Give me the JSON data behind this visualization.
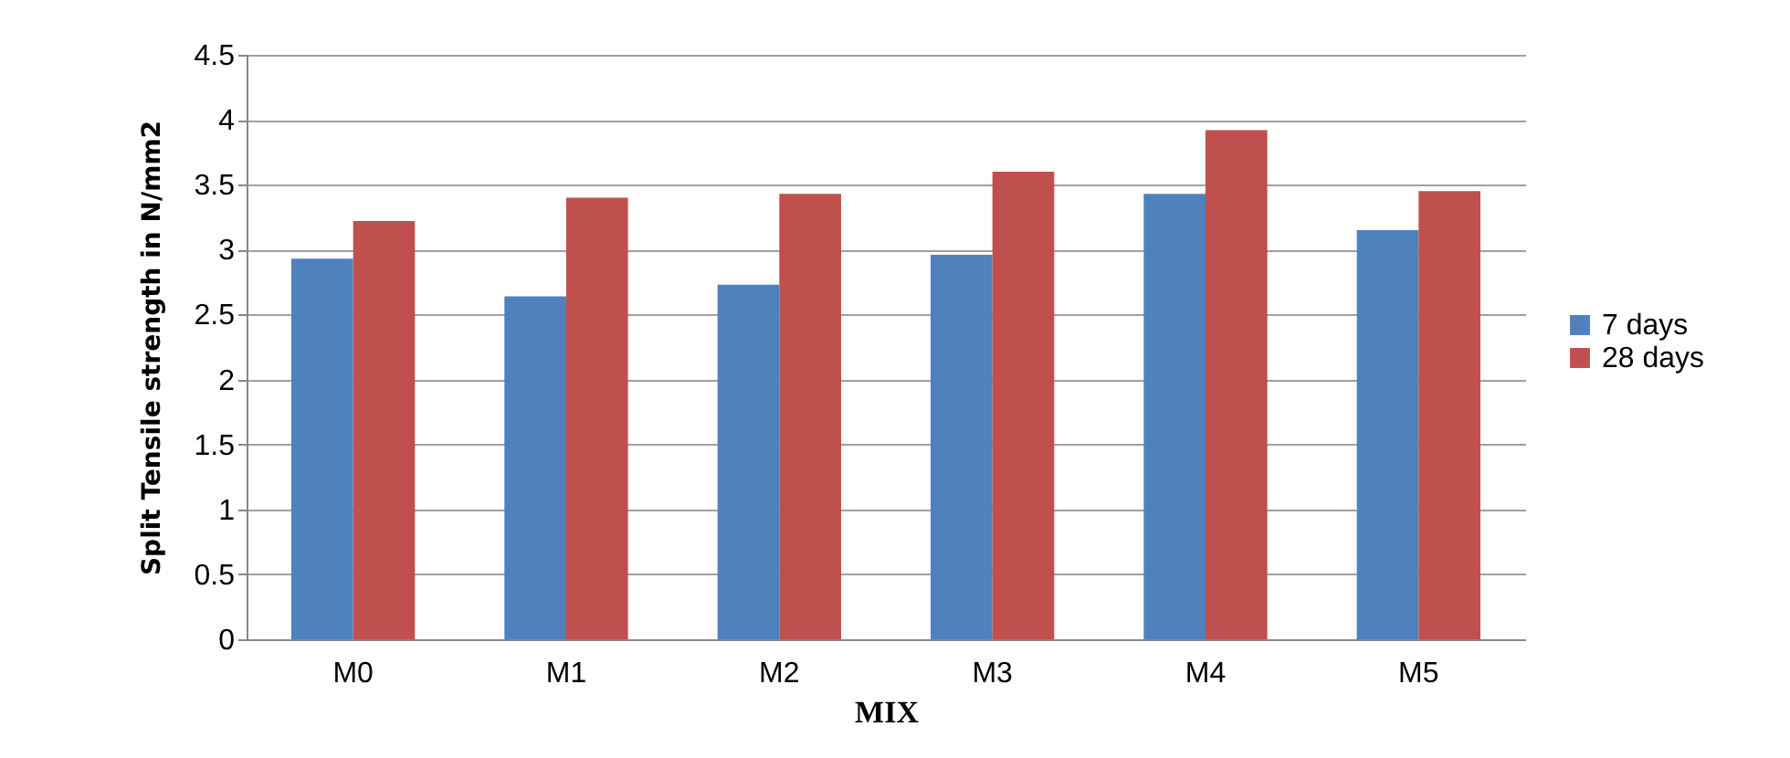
{
  "chart_data": {
    "type": "bar",
    "xlabel": "MIX",
    "ylabel": "Split Tensile strength in N/mm2",
    "categories": [
      "M0",
      "M1",
      "M2",
      "M3",
      "M4",
      "M5"
    ],
    "series": [
      {
        "name": "7 days",
        "color": "#4f81bd",
        "values": [
          2.93,
          2.64,
          2.73,
          2.96,
          3.43,
          3.15
        ]
      },
      {
        "name": "28 days",
        "color": "#c0504d",
        "values": [
          3.22,
          3.4,
          3.43,
          3.6,
          3.92,
          3.45
        ]
      }
    ],
    "ylim": [
      0,
      4.5
    ],
    "yticks": [
      0,
      0.5,
      1,
      1.5,
      2,
      2.5,
      3,
      3.5,
      4,
      4.5
    ],
    "grid": "y",
    "legend": "right"
  }
}
